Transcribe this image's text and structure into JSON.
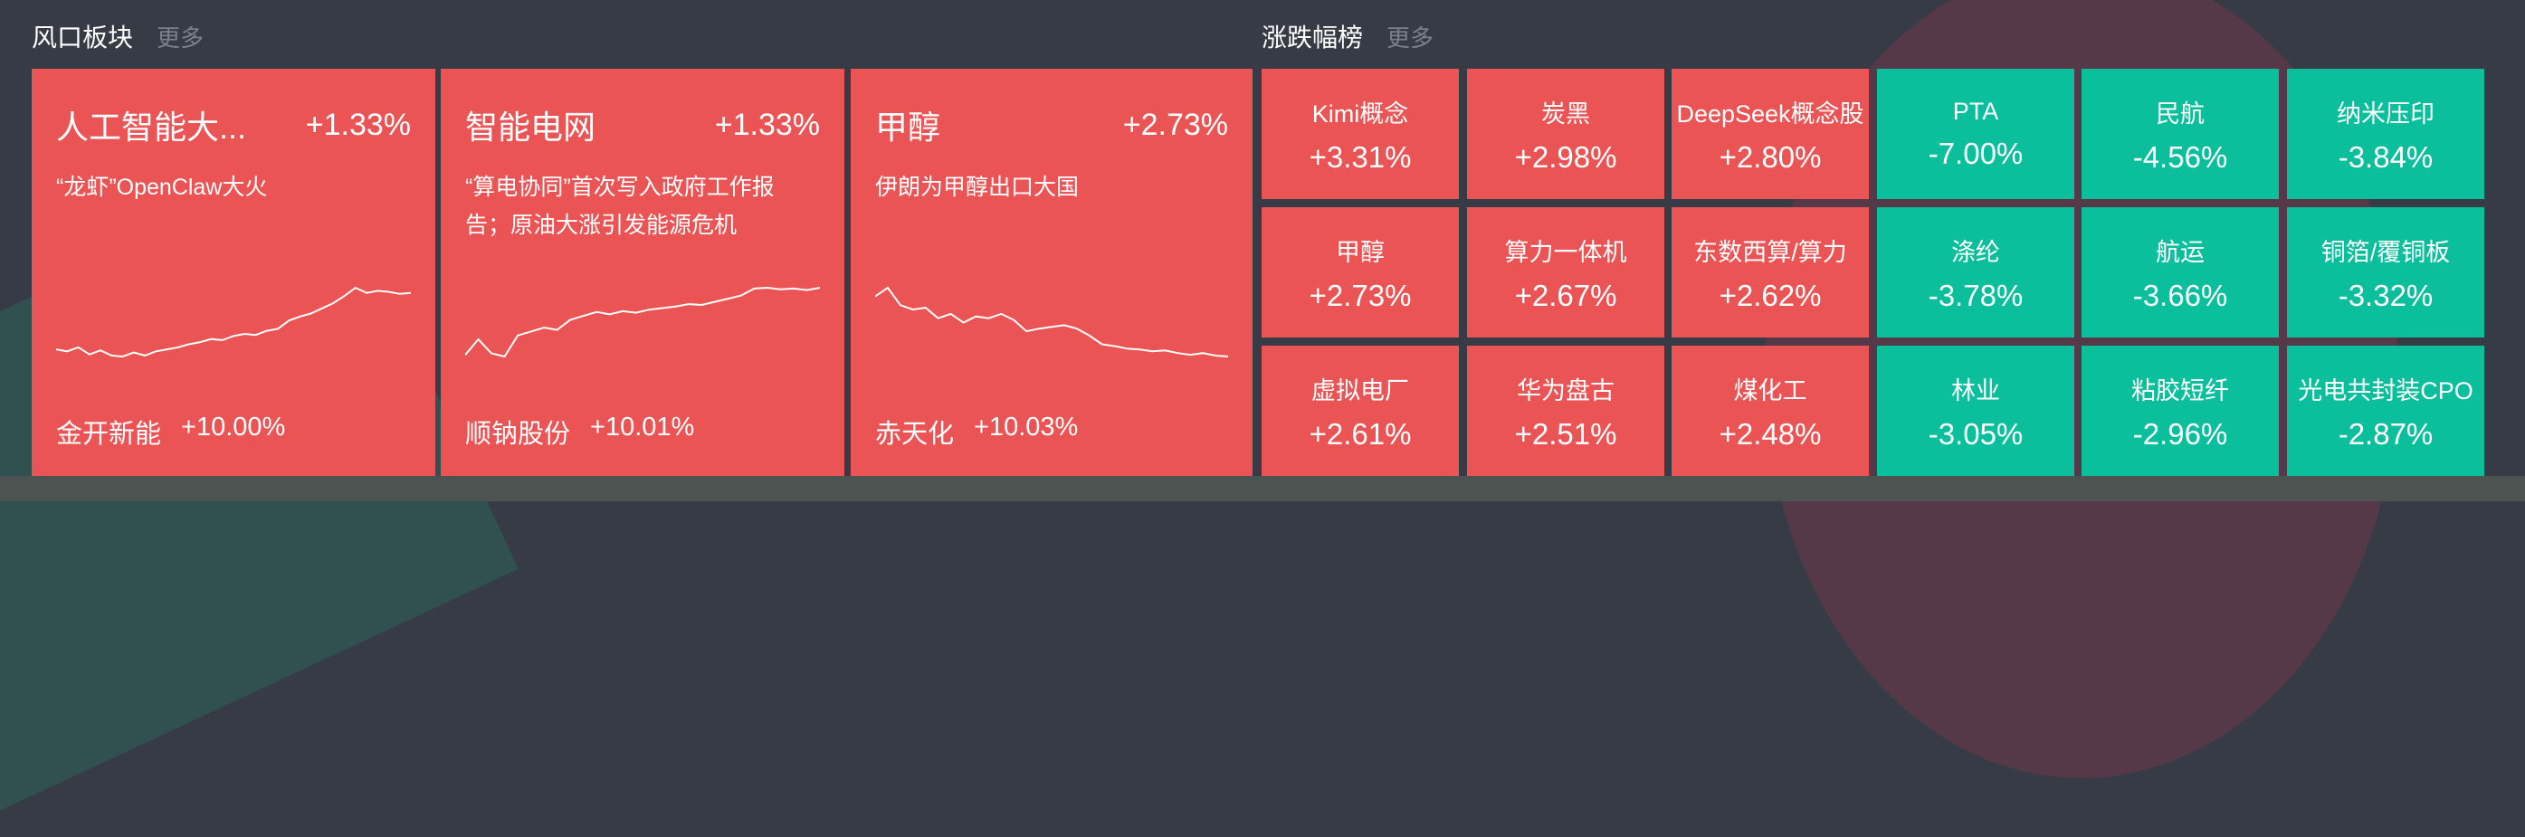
{
  "colors": {
    "up": "#ea5455",
    "down": "#0cbf9c",
    "background": "#363b46"
  },
  "hot_sectors": {
    "title": "风口板块",
    "more": "更多",
    "cards": [
      {
        "name": "人工智能大...",
        "change": "+1.33%",
        "desc": "“龙虾”OpenClaw大火",
        "leader": "金开新能",
        "leader_change": "+10.00%",
        "sparkline": [
          20,
          18,
          22,
          15,
          19,
          14,
          13,
          17,
          14,
          18,
          20,
          22,
          25,
          27,
          30,
          29,
          33,
          35,
          34,
          38,
          40,
          48,
          52,
          55,
          60,
          65,
          72,
          80,
          75,
          77,
          76,
          74,
          75
        ]
      },
      {
        "name": "智能电网",
        "change": "+1.33%",
        "desc": "“算电协同”首次写入政府工作报告；原油大涨引发能源危机",
        "leader": "顺钠股份",
        "leader_change": "+10.01%",
        "sparkline": [
          10,
          30,
          12,
          8,
          35,
          40,
          45,
          42,
          55,
          60,
          65,
          62,
          66,
          64,
          68,
          70,
          72,
          75,
          74,
          78,
          82,
          86,
          95,
          96,
          94,
          95,
          93,
          96
        ]
      },
      {
        "name": "甲醇",
        "change": "+2.73%",
        "desc": "伊朗为甲醇出口大国",
        "leader": "赤天化",
        "leader_change": "+10.03%",
        "sparkline": [
          85,
          95,
          75,
          70,
          72,
          60,
          65,
          55,
          62,
          60,
          65,
          58,
          45,
          48,
          50,
          52,
          48,
          40,
          30,
          28,
          25,
          24,
          22,
          23,
          20,
          18,
          20,
          17,
          16
        ]
      }
    ]
  },
  "movers": {
    "title": "涨跌幅榜",
    "more": "更多",
    "tiles": [
      {
        "name": "Kimi概念",
        "change": "+3.31%",
        "dir": "up"
      },
      {
        "name": "炭黑",
        "change": "+2.98%",
        "dir": "up"
      },
      {
        "name": "DeepSeek概念股",
        "change": "+2.80%",
        "dir": "up"
      },
      {
        "name": "PTA",
        "change": "-7.00%",
        "dir": "down"
      },
      {
        "name": "民航",
        "change": "-4.56%",
        "dir": "down"
      },
      {
        "name": "纳米压印",
        "change": "-3.84%",
        "dir": "down"
      },
      {
        "name": "甲醇",
        "change": "+2.73%",
        "dir": "up"
      },
      {
        "name": "算力一体机",
        "change": "+2.67%",
        "dir": "up"
      },
      {
        "name": "东数西算/算力",
        "change": "+2.62%",
        "dir": "up"
      },
      {
        "name": "涤纶",
        "change": "-3.78%",
        "dir": "down"
      },
      {
        "name": "航运",
        "change": "-3.66%",
        "dir": "down"
      },
      {
        "name": "铜箔/覆铜板",
        "change": "-3.32%",
        "dir": "down"
      },
      {
        "name": "虚拟电厂",
        "change": "+2.61%",
        "dir": "up"
      },
      {
        "name": "华为盘古",
        "change": "+2.51%",
        "dir": "up"
      },
      {
        "name": "煤化工",
        "change": "+2.48%",
        "dir": "up"
      },
      {
        "name": "林业",
        "change": "-3.05%",
        "dir": "down"
      },
      {
        "name": "粘胶短纤",
        "change": "-2.96%",
        "dir": "down"
      },
      {
        "name": "光电共封装CPO",
        "change": "-2.87%",
        "dir": "down"
      }
    ]
  }
}
